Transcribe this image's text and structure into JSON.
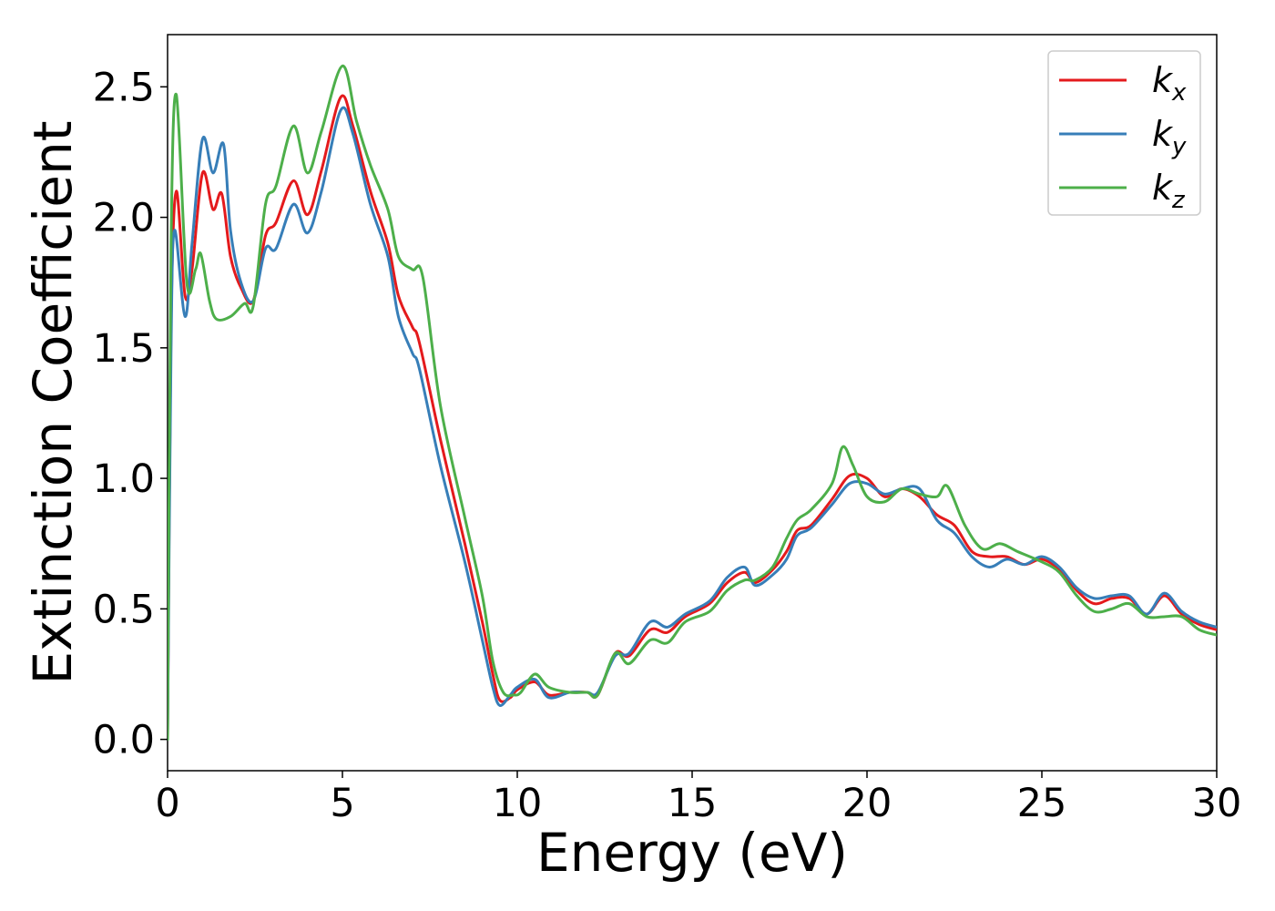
{
  "chart_data": {
    "type": "line",
    "title": "",
    "xlabel": "Energy (eV)",
    "ylabel": "Extinction Coefficient",
    "xlim": [
      0,
      30
    ],
    "ylim": [
      -0.12,
      2.7
    ],
    "xticks": [
      0,
      5,
      10,
      15,
      20,
      25,
      30
    ],
    "xtick_labels": [
      "0",
      "5",
      "10",
      "15",
      "20",
      "25",
      "30"
    ],
    "yticks": [
      0.0,
      0.5,
      1.0,
      1.5,
      2.0,
      2.5
    ],
    "ytick_labels": [
      "0.0",
      "0.5",
      "1.0",
      "1.5",
      "2.0",
      "2.5"
    ],
    "grid": false,
    "legend_position": "top-right",
    "series": [
      {
        "name": "k_x",
        "label_base": "k",
        "label_sub": "x",
        "color": "#e41a1c",
        "x": [
          0,
          0.1,
          0.25,
          0.5,
          0.7,
          1.0,
          1.3,
          1.55,
          1.8,
          2.1,
          2.45,
          2.8,
          3.1,
          3.6,
          4.0,
          4.4,
          4.95,
          5.3,
          5.8,
          6.3,
          6.6,
          7.0,
          7.2,
          7.8,
          8.5,
          9.0,
          9.3,
          9.5,
          9.8,
          10.0,
          10.5,
          10.9,
          11.5,
          12.0,
          12.3,
          12.8,
          13.2,
          13.8,
          14.3,
          14.8,
          15.5,
          16.0,
          16.5,
          16.8,
          17.3,
          17.7,
          18.0,
          18.4,
          19.0,
          19.5,
          20.0,
          20.5,
          21.0,
          21.5,
          22.0,
          22.5,
          23.0,
          23.5,
          24.0,
          24.5,
          25.0,
          25.5,
          26.0,
          26.5,
          27.0,
          27.5,
          28.0,
          28.5,
          29.0,
          29.5,
          30.0
        ],
        "y": [
          0,
          1.6,
          2.1,
          1.7,
          1.8,
          2.17,
          2.03,
          2.09,
          1.85,
          1.73,
          1.68,
          1.93,
          1.98,
          2.14,
          2.01,
          2.18,
          2.46,
          2.35,
          2.1,
          1.9,
          1.7,
          1.58,
          1.52,
          1.15,
          0.75,
          0.45,
          0.25,
          0.15,
          0.16,
          0.19,
          0.22,
          0.17,
          0.18,
          0.18,
          0.17,
          0.33,
          0.32,
          0.42,
          0.41,
          0.47,
          0.52,
          0.6,
          0.64,
          0.6,
          0.65,
          0.72,
          0.8,
          0.82,
          0.92,
          1.01,
          1.0,
          0.93,
          0.96,
          0.93,
          0.86,
          0.82,
          0.72,
          0.7,
          0.7,
          0.67,
          0.69,
          0.65,
          0.57,
          0.52,
          0.54,
          0.54,
          0.48,
          0.55,
          0.48,
          0.44,
          0.42
        ]
      },
      {
        "name": "k_y",
        "label_base": "k",
        "label_sub": "y",
        "color": "#377eb8",
        "x": [
          0,
          0.1,
          0.2,
          0.5,
          0.7,
          1.0,
          1.3,
          1.6,
          1.8,
          2.1,
          2.45,
          2.8,
          3.1,
          3.6,
          4.0,
          4.4,
          4.95,
          5.3,
          5.8,
          6.3,
          6.6,
          7.0,
          7.2,
          7.8,
          8.5,
          9.0,
          9.3,
          9.5,
          9.8,
          10.0,
          10.5,
          10.9,
          11.5,
          12.0,
          12.3,
          12.8,
          13.2,
          13.8,
          14.3,
          14.8,
          15.5,
          16.0,
          16.5,
          16.8,
          17.3,
          17.7,
          18.0,
          18.4,
          19.0,
          19.5,
          20.0,
          20.5,
          21.0,
          21.5,
          22.0,
          22.5,
          23.0,
          23.5,
          24.0,
          24.5,
          25.0,
          25.5,
          26.0,
          26.5,
          27.0,
          27.5,
          28.0,
          28.5,
          29.0,
          29.5,
          30.0
        ],
        "y": [
          0,
          1.5,
          1.95,
          1.62,
          1.9,
          2.3,
          2.17,
          2.28,
          1.95,
          1.75,
          1.68,
          1.88,
          1.88,
          2.05,
          1.94,
          2.1,
          2.41,
          2.32,
          2.05,
          1.85,
          1.62,
          1.48,
          1.42,
          1.05,
          0.68,
          0.38,
          0.2,
          0.13,
          0.17,
          0.2,
          0.23,
          0.16,
          0.18,
          0.18,
          0.18,
          0.32,
          0.33,
          0.45,
          0.43,
          0.48,
          0.53,
          0.62,
          0.66,
          0.59,
          0.63,
          0.69,
          0.78,
          0.81,
          0.9,
          0.98,
          0.98,
          0.94,
          0.96,
          0.96,
          0.84,
          0.79,
          0.7,
          0.66,
          0.69,
          0.67,
          0.7,
          0.66,
          0.58,
          0.54,
          0.55,
          0.55,
          0.48,
          0.56,
          0.49,
          0.45,
          0.43
        ]
      },
      {
        "name": "k_z",
        "label_base": "k",
        "label_sub": "z",
        "color": "#4daf4a",
        "x": [
          0,
          0.1,
          0.25,
          0.55,
          0.8,
          0.95,
          1.2,
          1.4,
          1.8,
          2.2,
          2.45,
          2.8,
          3.1,
          3.6,
          4.0,
          4.4,
          5.0,
          5.4,
          5.8,
          6.3,
          6.6,
          7.0,
          7.3,
          7.8,
          8.5,
          9.0,
          9.3,
          9.6,
          9.9,
          10.1,
          10.5,
          10.9,
          11.5,
          12.0,
          12.3,
          12.8,
          13.2,
          13.8,
          14.3,
          14.8,
          15.5,
          16.0,
          16.5,
          16.8,
          17.3,
          17.7,
          18.0,
          18.4,
          19.0,
          19.3,
          19.6,
          20.0,
          20.5,
          21.0,
          21.5,
          22.0,
          22.3,
          22.8,
          23.3,
          23.8,
          24.3,
          25.0,
          25.5,
          26.0,
          26.5,
          27.0,
          27.5,
          28.0,
          28.5,
          29.0,
          29.5,
          30.0
        ],
        "y": [
          0,
          1.9,
          2.47,
          1.75,
          1.8,
          1.86,
          1.68,
          1.61,
          1.62,
          1.67,
          1.66,
          2.05,
          2.12,
          2.35,
          2.17,
          2.33,
          2.58,
          2.37,
          2.2,
          2.03,
          1.85,
          1.8,
          1.77,
          1.28,
          0.85,
          0.55,
          0.3,
          0.18,
          0.17,
          0.18,
          0.25,
          0.2,
          0.18,
          0.18,
          0.17,
          0.33,
          0.29,
          0.38,
          0.37,
          0.45,
          0.49,
          0.57,
          0.61,
          0.61,
          0.66,
          0.77,
          0.84,
          0.88,
          0.98,
          1.12,
          1.05,
          0.93,
          0.91,
          0.96,
          0.94,
          0.93,
          0.97,
          0.82,
          0.73,
          0.75,
          0.72,
          0.68,
          0.64,
          0.55,
          0.49,
          0.5,
          0.52,
          0.47,
          0.47,
          0.47,
          0.42,
          0.4
        ]
      }
    ]
  }
}
